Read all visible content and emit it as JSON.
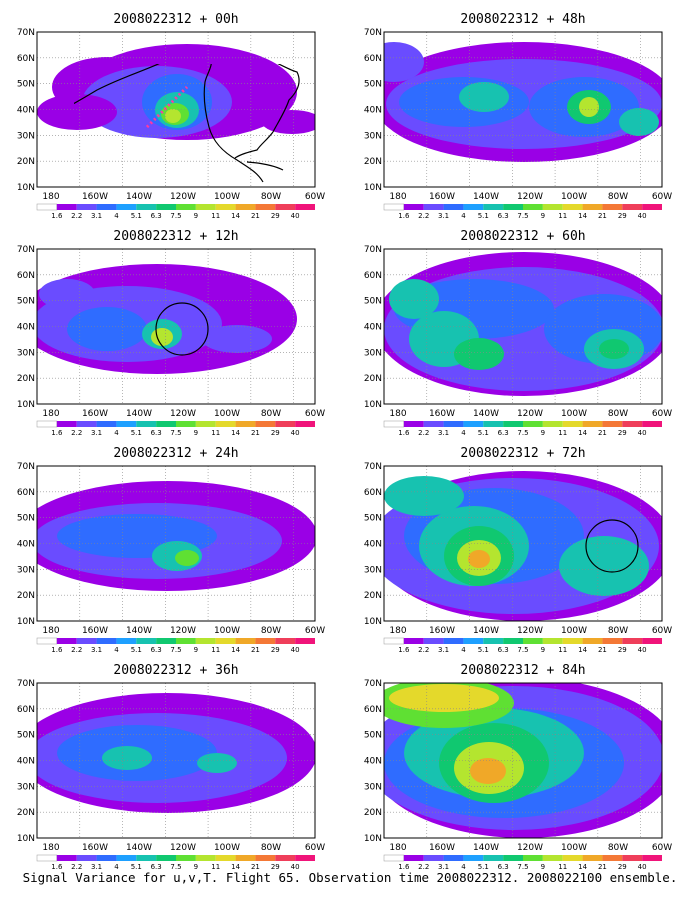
{
  "figure": {
    "caption": "Signal Variance for u,v,T. Flight 65. Observation time 2008022312. 2008022100 ensemble."
  },
  "axes": {
    "x_ticks": [
      "180",
      "160W",
      "140W",
      "120W",
      "100W",
      "80W",
      "60W"
    ],
    "y_ticks": [
      "10N",
      "20N",
      "30N",
      "40N",
      "50N",
      "60N",
      "70N"
    ],
    "lon_range": [
      -190,
      -60
    ],
    "lat_range": [
      10,
      70
    ]
  },
  "colorbar": {
    "labels": [
      "1.6",
      "2.2",
      "3.1",
      "4",
      "5.1",
      "6.3",
      "7.5",
      "9",
      "11",
      "14",
      "21",
      "29",
      "40"
    ],
    "colors": [
      "#ffffff",
      "#9a00e6",
      "#6a4cff",
      "#2f6cff",
      "#1ea0ff",
      "#17c2b0",
      "#10c870",
      "#5fe033",
      "#b4e52f",
      "#e4d92b",
      "#f0a828",
      "#f47836",
      "#ef3e5a",
      "#f0147a"
    ]
  },
  "panels": [
    {
      "title": "2008022312 + 00h"
    },
    {
      "title": "2008022312 + 48h"
    },
    {
      "title": "2008022312 + 12h"
    },
    {
      "title": "2008022312 + 60h"
    },
    {
      "title": "2008022312 + 24h"
    },
    {
      "title": "2008022312 + 72h"
    },
    {
      "title": "2008022312 + 36h"
    },
    {
      "title": "2008022312 + 84h"
    }
  ]
}
